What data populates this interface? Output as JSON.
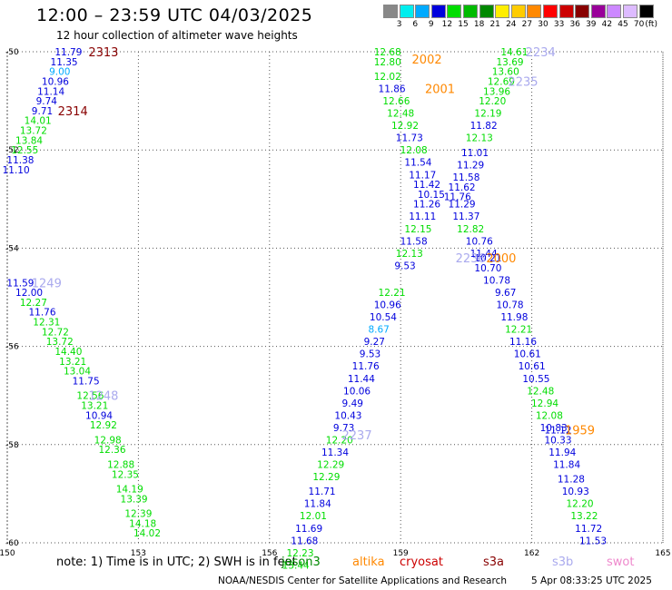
{
  "title": "12:00 – 23:59 UTC 04/03/2025",
  "subtitle": "12 hour collection of altimeter wave heights",
  "note": "note: 1) Time is in UTC; 2) SWH is in feet",
  "satellites": [
    {
      "name": "jason3",
      "color": "#008800"
    },
    {
      "name": "altika",
      "color": "#ff8800"
    },
    {
      "name": "cryosat",
      "color": "#cc0000"
    },
    {
      "name": "s3a",
      "color": "#880000"
    },
    {
      "name": "s3b",
      "color": "#aaaaee"
    },
    {
      "name": "swot",
      "color": "#ee88cc"
    }
  ],
  "credit": "NOAA/NESDIS Center for Satellite Applications and Research",
  "timestamp": "5 Apr 08:33:25 UTC 2025",
  "colorbar": {
    "unit": "(ft)",
    "colors": [
      "#888888",
      "#00eeee",
      "#00aaff",
      "#0000dd",
      "#00dd00",
      "#00bb00",
      "#008800",
      "#ffee00",
      "#ffcc00",
      "#ff8800",
      "#ff0000",
      "#cc0000",
      "#880000",
      "#990099",
      "#cc88ff",
      "#ddbbff",
      "#000000"
    ],
    "labels": [
      "3",
      "6",
      "9",
      "12",
      "15",
      "18",
      "21",
      "24",
      "27",
      "30",
      "33",
      "36",
      "39",
      "42",
      "45",
      "70"
    ]
  },
  "chart_data": {
    "type": "scatter",
    "x_ticks": [
      "150",
      "153",
      "156",
      "159",
      "162",
      "165"
    ],
    "y_ticks": [
      "-50",
      "-52",
      "-54",
      "-56",
      "-58",
      "-60"
    ],
    "xlim": [
      150,
      165
    ],
    "ylim": [
      -60,
      -50
    ],
    "pass_labels": [
      {
        "text": "2313",
        "lon": 152.2,
        "lat": -50.0,
        "color": "#880000"
      },
      {
        "text": "2314",
        "lon": 151.5,
        "lat": -51.2,
        "color": "#880000"
      },
      {
        "text": "2002",
        "lon": 159.6,
        "lat": -50.15,
        "color": "#ff8800"
      },
      {
        "text": "2001",
        "lon": 159.9,
        "lat": -50.75,
        "color": "#ff8800"
      },
      {
        "text": "2234",
        "lon": 162.2,
        "lat": -50.0,
        "color": "#aaaaee"
      },
      {
        "text": "2235",
        "lon": 161.8,
        "lat": -50.6,
        "color": "#aaaaee"
      },
      {
        "text": "1249",
        "lon": 150.9,
        "lat": -54.7,
        "color": "#aaaaee"
      },
      {
        "text": "1248",
        "lon": 152.2,
        "lat": -57.0,
        "color": "#aaaaee"
      },
      {
        "text": "2236",
        "lon": 160.6,
        "lat": -54.2,
        "color": "#aaaaee"
      },
      {
        "text": "2000",
        "lon": 161.3,
        "lat": -54.2,
        "color": "#ff8800"
      },
      {
        "text": "2237",
        "lon": 158.0,
        "lat": -57.8,
        "color": "#aaaaee"
      },
      {
        "text": "1959",
        "lon": 163.1,
        "lat": -57.7,
        "color": "#ff8800"
      }
    ],
    "series": [
      {
        "lon": 151.4,
        "lat": -50.0,
        "v": "11.79",
        "c": "#0000dd"
      },
      {
        "lon": 151.3,
        "lat": -50.2,
        "v": "11.35",
        "c": "#0000dd"
      },
      {
        "lon": 151.2,
        "lat": -50.4,
        "v": "9.00",
        "c": "#00aaff"
      },
      {
        "lon": 151.1,
        "lat": -50.6,
        "v": "10.96",
        "c": "#0000dd"
      },
      {
        "lon": 151.0,
        "lat": -50.8,
        "v": "11.14",
        "c": "#0000dd"
      },
      {
        "lon": 150.9,
        "lat": -51.0,
        "v": "9.74",
        "c": "#0000dd"
      },
      {
        "lon": 150.8,
        "lat": -51.2,
        "v": "9.71",
        "c": "#0000dd"
      },
      {
        "lon": 150.7,
        "lat": -51.4,
        "v": "14.01",
        "c": "#00dd00"
      },
      {
        "lon": 150.6,
        "lat": -51.6,
        "v": "13.72",
        "c": "#00dd00"
      },
      {
        "lon": 150.5,
        "lat": -51.8,
        "v": "13.84",
        "c": "#00dd00"
      },
      {
        "lon": 150.4,
        "lat": -52.0,
        "v": "12.55",
        "c": "#00dd00"
      },
      {
        "lon": 150.3,
        "lat": -52.2,
        "v": "11.38",
        "c": "#0000dd"
      },
      {
        "lon": 150.2,
        "lat": -52.4,
        "v": "11.10",
        "c": "#0000dd"
      },
      {
        "lon": 150.3,
        "lat": -54.7,
        "v": "11.59",
        "c": "#0000dd"
      },
      {
        "lon": 150.5,
        "lat": -54.9,
        "v": "12.00",
        "c": "#0000dd"
      },
      {
        "lon": 150.6,
        "lat": -55.1,
        "v": "12.27",
        "c": "#00dd00"
      },
      {
        "lon": 150.8,
        "lat": -55.3,
        "v": "11.76",
        "c": "#0000dd"
      },
      {
        "lon": 150.9,
        "lat": -55.5,
        "v": "12.31",
        "c": "#00dd00"
      },
      {
        "lon": 151.1,
        "lat": -55.7,
        "v": "12.72",
        "c": "#00dd00"
      },
      {
        "lon": 151.2,
        "lat": -55.9,
        "v": "13.72",
        "c": "#00dd00"
      },
      {
        "lon": 151.4,
        "lat": -56.1,
        "v": "14.40",
        "c": "#00dd00"
      },
      {
        "lon": 151.5,
        "lat": -56.3,
        "v": "13.21",
        "c": "#00dd00"
      },
      {
        "lon": 151.6,
        "lat": -56.5,
        "v": "13.04",
        "c": "#00dd00"
      },
      {
        "lon": 151.8,
        "lat": -56.7,
        "v": "11.75",
        "c": "#0000dd"
      },
      {
        "lon": 151.9,
        "lat": -57.0,
        "v": "12.56",
        "c": "#00dd00"
      },
      {
        "lon": 152.0,
        "lat": -57.2,
        "v": "13.21",
        "c": "#00dd00"
      },
      {
        "lon": 152.1,
        "lat": -57.4,
        "v": "10.94",
        "c": "#0000dd"
      },
      {
        "lon": 152.2,
        "lat": -57.6,
        "v": "12.92",
        "c": "#00dd00"
      },
      {
        "lon": 152.3,
        "lat": -57.9,
        "v": "12.98",
        "c": "#00dd00"
      },
      {
        "lon": 152.4,
        "lat": -58.1,
        "v": "12.36",
        "c": "#00dd00"
      },
      {
        "lon": 152.6,
        "lat": -58.4,
        "v": "12.88",
        "c": "#00dd00"
      },
      {
        "lon": 152.7,
        "lat": -58.6,
        "v": "12.35",
        "c": "#00dd00"
      },
      {
        "lon": 152.8,
        "lat": -58.9,
        "v": "14.19",
        "c": "#00dd00"
      },
      {
        "lon": 152.9,
        "lat": -59.1,
        "v": "13.39",
        "c": "#00dd00"
      },
      {
        "lon": 153.0,
        "lat": -59.4,
        "v": "12.39",
        "c": "#00dd00"
      },
      {
        "lon": 153.1,
        "lat": -59.6,
        "v": "14.18",
        "c": "#00dd00"
      },
      {
        "lon": 153.2,
        "lat": -59.8,
        "v": "14.02",
        "c": "#00dd00"
      },
      {
        "lon": 158.7,
        "lat": -50.0,
        "v": "12.68",
        "c": "#00dd00"
      },
      {
        "lon": 158.7,
        "lat": -50.2,
        "v": "12.80",
        "c": "#00dd00"
      },
      {
        "lon": 158.7,
        "lat": -50.5,
        "v": "12.02",
        "c": "#00dd00"
      },
      {
        "lon": 158.8,
        "lat": -50.75,
        "v": "11.86",
        "c": "#0000dd"
      },
      {
        "lon": 158.9,
        "lat": -51.0,
        "v": "12.66",
        "c": "#00dd00"
      },
      {
        "lon": 159.0,
        "lat": -51.25,
        "v": "12.48",
        "c": "#00dd00"
      },
      {
        "lon": 159.1,
        "lat": -51.5,
        "v": "12.92",
        "c": "#00dd00"
      },
      {
        "lon": 159.2,
        "lat": -51.75,
        "v": "11.73",
        "c": "#0000dd"
      },
      {
        "lon": 159.3,
        "lat": -52.0,
        "v": "12.08",
        "c": "#00dd00"
      },
      {
        "lon": 159.4,
        "lat": -52.25,
        "v": "11.54",
        "c": "#0000dd"
      },
      {
        "lon": 159.5,
        "lat": -52.5,
        "v": "11.17",
        "c": "#0000dd"
      },
      {
        "lon": 159.6,
        "lat": -52.7,
        "v": "11.42",
        "c": "#0000dd"
      },
      {
        "lon": 159.7,
        "lat": -52.9,
        "v": "10.15",
        "c": "#0000dd"
      },
      {
        "lon": 159.6,
        "lat": -53.1,
        "v": "11.26",
        "c": "#0000dd"
      },
      {
        "lon": 159.5,
        "lat": -53.35,
        "v": "11.11",
        "c": "#0000dd"
      },
      {
        "lon": 159.4,
        "lat": -53.6,
        "v": "12.15",
        "c": "#00dd00"
      },
      {
        "lon": 159.3,
        "lat": -53.85,
        "v": "11.58",
        "c": "#0000dd"
      },
      {
        "lon": 159.2,
        "lat": -54.1,
        "v": "12.13",
        "c": "#00dd00"
      },
      {
        "lon": 159.1,
        "lat": -54.35,
        "v": "9.53",
        "c": "#0000dd"
      },
      {
        "lon": 161.6,
        "lat": -50.0,
        "v": "14.61",
        "c": "#00dd00"
      },
      {
        "lon": 161.5,
        "lat": -50.2,
        "v": "13.69",
        "c": "#00dd00"
      },
      {
        "lon": 161.4,
        "lat": -50.4,
        "v": "13.60",
        "c": "#00dd00"
      },
      {
        "lon": 161.3,
        "lat": -50.6,
        "v": "12.69",
        "c": "#00dd00"
      },
      {
        "lon": 161.2,
        "lat": -50.8,
        "v": "13.96",
        "c": "#00dd00"
      },
      {
        "lon": 161.1,
        "lat": -51.0,
        "v": "12.20",
        "c": "#00dd00"
      },
      {
        "lon": 161.0,
        "lat": -51.25,
        "v": "12.19",
        "c": "#00dd00"
      },
      {
        "lon": 160.9,
        "lat": -51.5,
        "v": "11.82",
        "c": "#0000dd"
      },
      {
        "lon": 160.8,
        "lat": -51.75,
        "v": "12.13",
        "c": "#00dd00"
      },
      {
        "lon": 160.7,
        "lat": -52.05,
        "v": "11.01",
        "c": "#0000dd"
      },
      {
        "lon": 160.6,
        "lat": -52.3,
        "v": "11.29",
        "c": "#0000dd"
      },
      {
        "lon": 160.5,
        "lat": -52.55,
        "v": "11.58",
        "c": "#0000dd"
      },
      {
        "lon": 160.4,
        "lat": -52.75,
        "v": "11.62",
        "c": "#0000dd"
      },
      {
        "lon": 160.3,
        "lat": -52.95,
        "v": "11.76",
        "c": "#0000dd"
      },
      {
        "lon": 160.4,
        "lat": -53.1,
        "v": "11.29",
        "c": "#0000dd"
      },
      {
        "lon": 160.5,
        "lat": -53.35,
        "v": "11.37",
        "c": "#0000dd"
      },
      {
        "lon": 160.6,
        "lat": -53.6,
        "v": "12.82",
        "c": "#00dd00"
      },
      {
        "lon": 160.8,
        "lat": -53.85,
        "v": "10.76",
        "c": "#0000dd"
      },
      {
        "lon": 160.9,
        "lat": -54.1,
        "v": "11.44",
        "c": "#0000dd"
      },
      {
        "lon": 161.0,
        "lat": -54.2,
        "v": "10.21",
        "c": "#0000dd"
      },
      {
        "lon": 161.0,
        "lat": -54.4,
        "v": "10.70",
        "c": "#0000dd"
      },
      {
        "lon": 161.2,
        "lat": -54.65,
        "v": "10.78",
        "c": "#0000dd"
      },
      {
        "lon": 161.4,
        "lat": -54.9,
        "v": "9.67",
        "c": "#0000dd"
      },
      {
        "lon": 161.5,
        "lat": -55.15,
        "v": "10.78",
        "c": "#0000dd"
      },
      {
        "lon": 161.6,
        "lat": -55.4,
        "v": "11.98",
        "c": "#0000dd"
      },
      {
        "lon": 161.7,
        "lat": -55.65,
        "v": "12.21",
        "c": "#00dd00"
      },
      {
        "lon": 161.8,
        "lat": -55.9,
        "v": "11.16",
        "c": "#0000dd"
      },
      {
        "lon": 161.9,
        "lat": -56.15,
        "v": "10.61",
        "c": "#0000dd"
      },
      {
        "lon": 162.0,
        "lat": -56.4,
        "v": "10.61",
        "c": "#0000dd"
      },
      {
        "lon": 162.1,
        "lat": -56.65,
        "v": "10.55",
        "c": "#0000dd"
      },
      {
        "lon": 162.2,
        "lat": -56.9,
        "v": "12.48",
        "c": "#00dd00"
      },
      {
        "lon": 162.3,
        "lat": -57.15,
        "v": "12.94",
        "c": "#00dd00"
      },
      {
        "lon": 162.4,
        "lat": -57.4,
        "v": "12.08",
        "c": "#00dd00"
      },
      {
        "lon": 162.5,
        "lat": -57.65,
        "v": "10.83",
        "c": "#0000dd"
      },
      {
        "lon": 162.6,
        "lat": -57.7,
        "v": "11.12",
        "c": "#0000dd"
      },
      {
        "lon": 162.6,
        "lat": -57.9,
        "v": "10.33",
        "c": "#0000dd"
      },
      {
        "lon": 162.7,
        "lat": -58.15,
        "v": "11.94",
        "c": "#0000dd"
      },
      {
        "lon": 162.8,
        "lat": -58.4,
        "v": "11.84",
        "c": "#0000dd"
      },
      {
        "lon": 162.9,
        "lat": -58.7,
        "v": "11.28",
        "c": "#0000dd"
      },
      {
        "lon": 163.0,
        "lat": -58.95,
        "v": "10.93",
        "c": "#0000dd"
      },
      {
        "lon": 163.1,
        "lat": -59.2,
        "v": "12.20",
        "c": "#00dd00"
      },
      {
        "lon": 163.2,
        "lat": -59.45,
        "v": "13.22",
        "c": "#00dd00"
      },
      {
        "lon": 163.3,
        "lat": -59.7,
        "v": "11.72",
        "c": "#0000dd"
      },
      {
        "lon": 163.4,
        "lat": -59.95,
        "v": "11.53",
        "c": "#0000dd"
      },
      {
        "lon": 158.8,
        "lat": -54.9,
        "v": "12.21",
        "c": "#00dd00"
      },
      {
        "lon": 158.7,
        "lat": -55.15,
        "v": "10.96",
        "c": "#0000dd"
      },
      {
        "lon": 158.6,
        "lat": -55.4,
        "v": "10.54",
        "c": "#0000dd"
      },
      {
        "lon": 158.5,
        "lat": -55.65,
        "v": "8.67",
        "c": "#00aaff"
      },
      {
        "lon": 158.4,
        "lat": -55.9,
        "v": "9.27",
        "c": "#0000dd"
      },
      {
        "lon": 158.3,
        "lat": -56.15,
        "v": "9.53",
        "c": "#0000dd"
      },
      {
        "lon": 158.2,
        "lat": -56.4,
        "v": "11.76",
        "c": "#0000dd"
      },
      {
        "lon": 158.1,
        "lat": -56.65,
        "v": "11.44",
        "c": "#0000dd"
      },
      {
        "lon": 158.0,
        "lat": -56.9,
        "v": "10.06",
        "c": "#0000dd"
      },
      {
        "lon": 157.9,
        "lat": -57.15,
        "v": "9.49",
        "c": "#0000dd"
      },
      {
        "lon": 157.8,
        "lat": -57.4,
        "v": "10.43",
        "c": "#0000dd"
      },
      {
        "lon": 157.7,
        "lat": -57.65,
        "v": "9.73",
        "c": "#0000dd"
      },
      {
        "lon": 157.6,
        "lat": -57.9,
        "v": "12.20",
        "c": "#00dd00"
      },
      {
        "lon": 157.5,
        "lat": -58.15,
        "v": "11.34",
        "c": "#0000dd"
      },
      {
        "lon": 157.4,
        "lat": -58.4,
        "v": "12.29",
        "c": "#00dd00"
      },
      {
        "lon": 157.3,
        "lat": -58.65,
        "v": "12.29",
        "c": "#00dd00"
      },
      {
        "lon": 157.2,
        "lat": -58.95,
        "v": "11.71",
        "c": "#0000dd"
      },
      {
        "lon": 157.1,
        "lat": -59.2,
        "v": "11.84",
        "c": "#0000dd"
      },
      {
        "lon": 157.0,
        "lat": -59.45,
        "v": "12.01",
        "c": "#00dd00"
      },
      {
        "lon": 156.9,
        "lat": -59.7,
        "v": "11.69",
        "c": "#0000dd"
      },
      {
        "lon": 156.8,
        "lat": -59.95,
        "v": "11.68",
        "c": "#0000dd"
      },
      {
        "lon": 156.7,
        "lat": -60.2,
        "v": "12.23",
        "c": "#00dd00"
      },
      {
        "lon": 156.6,
        "lat": -60.45,
        "v": "13.44",
        "c": "#00dd00"
      }
    ]
  }
}
